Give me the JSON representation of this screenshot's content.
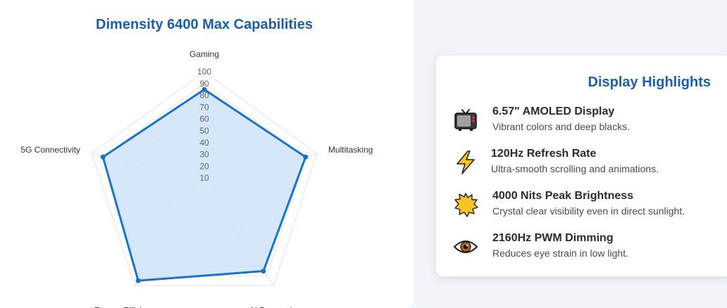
{
  "chart_card": {
    "title": "Dimensity 6400 Max Capabilities"
  },
  "chart_data": {
    "type": "radar",
    "title": "Dimensity 6400 Max Capabilities",
    "categories": [
      "Gaming",
      "Multitasking",
      "AI Processing",
      "Energy Efficiency",
      "5G Connectivity"
    ],
    "series": [
      {
        "values": [
          85,
          90,
          85,
          95,
          90
        ],
        "color": "#1a73c7",
        "fill": "#cfe3f8"
      }
    ],
    "r_range": [
      0,
      100
    ],
    "r_ticks": [
      10,
      20,
      30,
      40,
      50,
      60,
      70,
      80,
      90,
      100
    ],
    "grid": true
  },
  "highlights": {
    "title": "Display Highlights",
    "items": [
      {
        "icon": "tv-icon",
        "name": "6.57\" AMOLED Display",
        "desc": "Vibrant colors and deep blacks."
      },
      {
        "icon": "lightning-icon",
        "name": "120Hz Refresh Rate",
        "desc": "Ultra-smooth scrolling and animations."
      },
      {
        "icon": "sun-burst-icon",
        "name": "4000 Nits Peak Brightness",
        "desc": "Crystal clear visibility even in direct sunlight."
      },
      {
        "icon": "eye-icon",
        "name": "2160Hz PWM Dimming",
        "desc": "Reduces eye strain in low light."
      }
    ]
  }
}
